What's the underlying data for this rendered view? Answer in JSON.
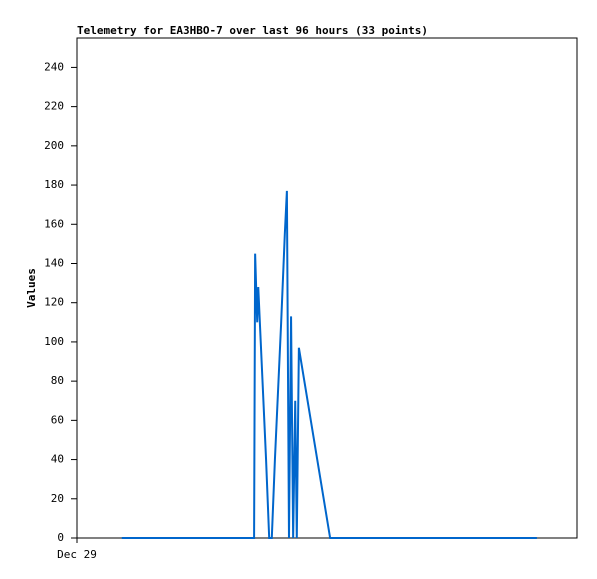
{
  "chart_data": {
    "type": "line",
    "title": "Telemetry for EA3HBO-7 over last 96 hours (33 points)",
    "y_label": "Values",
    "x": [
      8.6,
      12.1,
      15.9,
      19.8,
      23.6,
      27.5,
      31.3,
      34.0,
      34.2,
      34.6,
      34.8,
      36.3,
      36.9,
      37.4,
      38.0,
      39.2,
      39.9,
      40.3,
      40.7,
      41.1,
      41.5,
      41.9,
      42.2,
      42.6,
      48.6,
      51.5,
      54.3,
      60.1,
      65.9,
      71.6,
      77.4,
      83.1,
      88.3
    ],
    "series": [
      {
        "color": "#0066cc",
        "values": [
          0,
          0,
          0,
          0,
          0,
          0,
          0,
          0,
          145,
          110,
          128,
          40,
          0,
          0,
          40,
          110,
          155,
          177,
          0,
          113,
          0,
          70,
          0,
          97,
          0,
          0,
          0,
          0,
          0,
          0,
          0,
          0,
          0
        ]
      }
    ],
    "xlim": [
      0,
      96
    ],
    "xticks": [
      {
        "value": 0,
        "label": "Dec 29"
      }
    ],
    "ylim": [
      0,
      255
    ],
    "yticks": [
      0,
      20,
      40,
      60,
      80,
      100,
      120,
      140,
      160,
      180,
      200,
      220,
      240
    ]
  }
}
